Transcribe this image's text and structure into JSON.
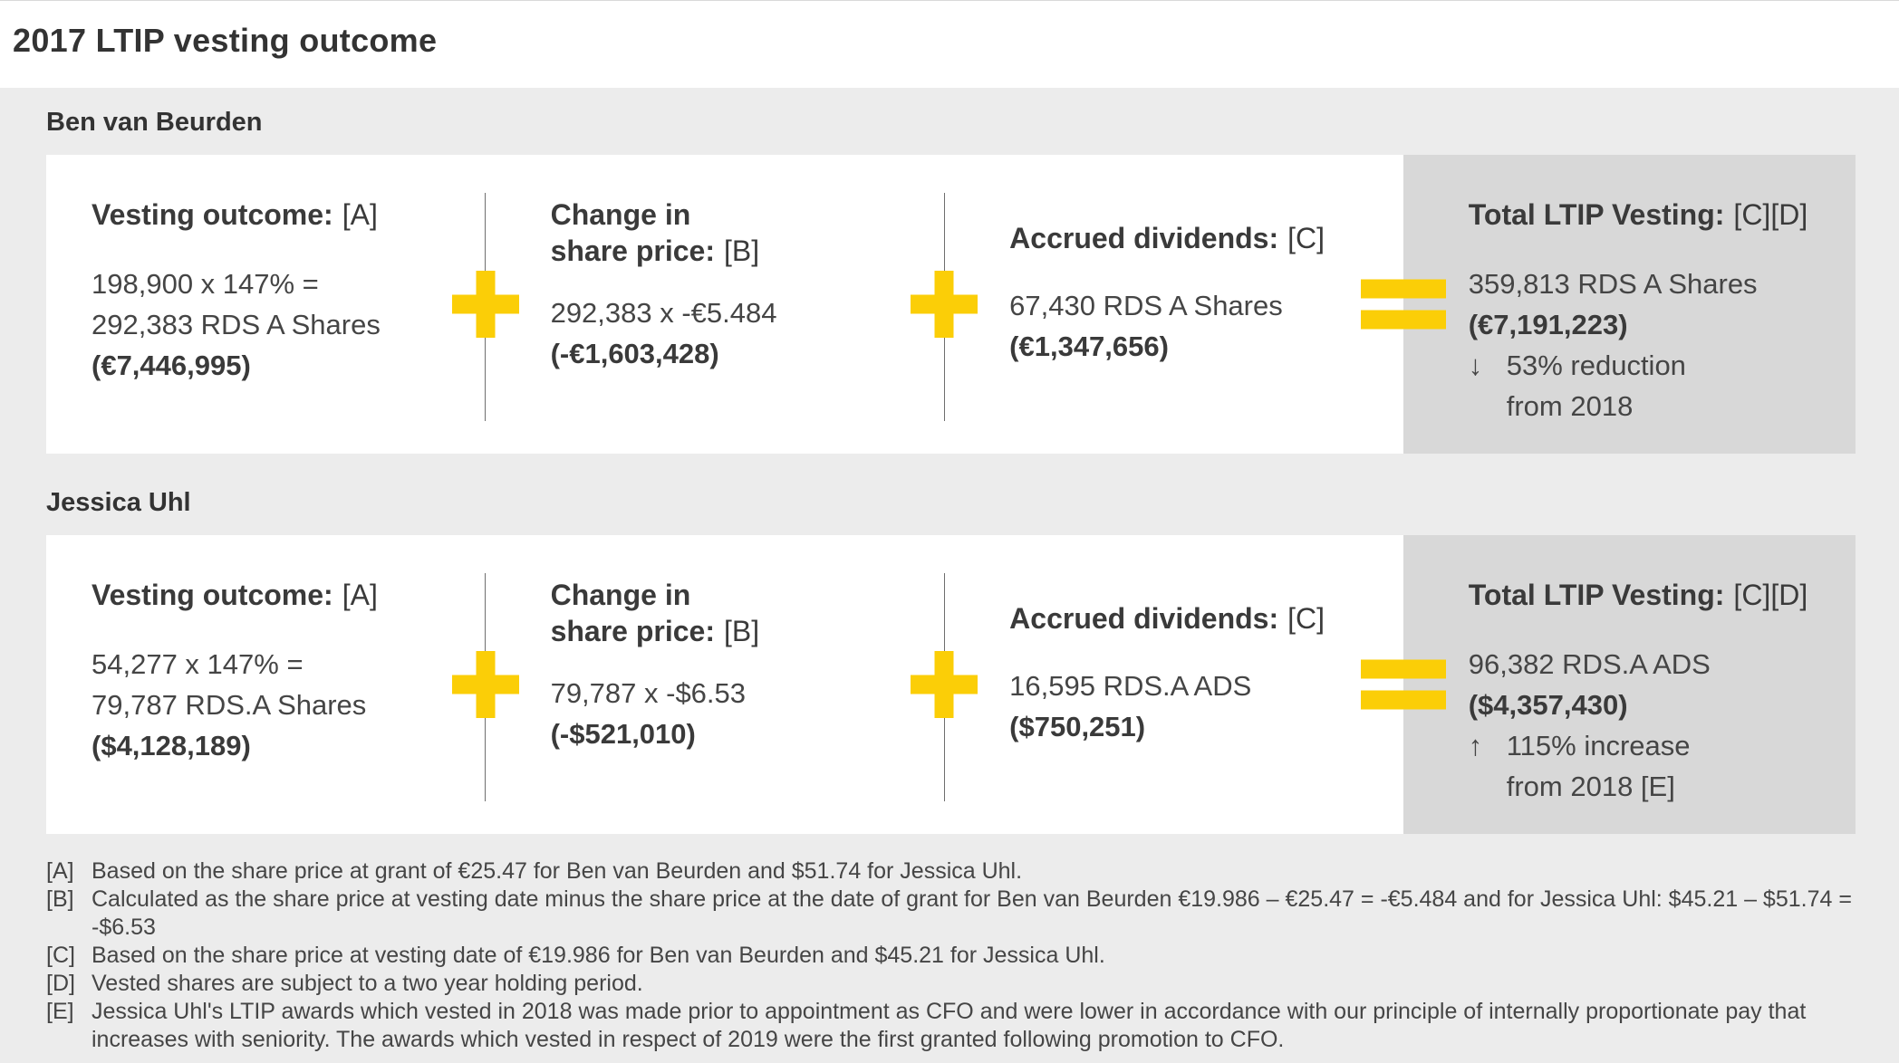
{
  "title": "2017 LTIP vesting outcome",
  "colors": {
    "accent-yellow": "#FBCE07",
    "panel-bg": "#ECECEC",
    "card-bg": "#FFFFFF",
    "total-bg": "#D8D8D8",
    "text": "#3D3D3D"
  },
  "panels": [
    {
      "name": "Ben van Beurden",
      "cells": [
        {
          "heading": "Vesting outcome:",
          "ref": "[A]",
          "lines": [
            "198,900 x 147% =",
            "292,383 RDS A Shares"
          ],
          "result": "(€7,446,995)"
        },
        {
          "heading_line1": "Change in",
          "heading_line2": "share price:",
          "ref": "[B]",
          "lines": [
            "292,383 x -€5.484"
          ],
          "result": "(-€1,603,428)"
        },
        {
          "heading": "Accrued dividends:",
          "ref": "[C]",
          "lines": [
            "67,430 RDS A Shares"
          ],
          "result": "(€1,347,656)"
        }
      ],
      "total": {
        "heading": "Total LTIP Vesting:",
        "ref": "[C][D]",
        "line": "359,813 RDS A Shares",
        "result": "(€7,191,223)",
        "arrow": "↓",
        "delta": "53% reduction",
        "delta2": "from 2018"
      }
    },
    {
      "name": "Jessica Uhl",
      "cells": [
        {
          "heading": "Vesting outcome:",
          "ref": "[A]",
          "lines": [
            "54,277 x 147% =",
            "79,787 RDS.A Shares"
          ],
          "result": "($4,128,189)"
        },
        {
          "heading_line1": "Change in",
          "heading_line2": "share price:",
          "ref": "[B]",
          "lines": [
            "79,787 x -$6.53"
          ],
          "result": "(-$521,010)"
        },
        {
          "heading": "Accrued dividends:",
          "ref": "[C]",
          "lines": [
            "16,595 RDS.A ADS"
          ],
          "result": "($750,251)"
        }
      ],
      "total": {
        "heading": "Total LTIP Vesting:",
        "ref": "[C][D]",
        "line": "96,382 RDS.A ADS",
        "result": "($4,357,430)",
        "arrow": "↑",
        "delta": "115% increase",
        "delta2": "from 2018 [E]"
      }
    }
  ],
  "footnotes": [
    {
      "ref": "[A]",
      "text": "Based on the share price at grant of €25.47 for Ben van Beurden and $51.74 for Jessica Uhl."
    },
    {
      "ref": "[B]",
      "text": "Calculated as the share price at vesting date minus the share price at the date of grant for Ben van Beurden €19.986 – €25.47 = -€5.484 and for Jessica Uhl: $45.21 – $51.74 = -$6.53"
    },
    {
      "ref": "[C]",
      "text": "Based on the share price at vesting date of €19.986 for Ben van Beurden and $45.21 for Jessica Uhl."
    },
    {
      "ref": "[D]",
      "text": "Vested shares are subject to a two year holding period."
    },
    {
      "ref": "[E]",
      "text": "Jessica Uhl's LTIP awards which vested in 2018 was made prior to appointment as CFO and were lower in accordance with our principle of internally proportionate pay that increases with seniority. The awards which vested in respect of 2019 were the first granted following promotion to CFO."
    }
  ]
}
